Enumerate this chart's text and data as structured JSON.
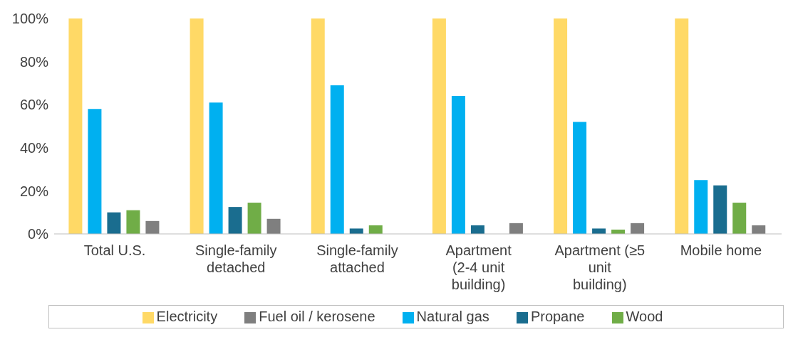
{
  "chart_data": {
    "type": "bar",
    "categories": [
      "Total U.S.",
      "Single-family detached",
      "Single-family attached",
      "Apartment (2-4 unit building)",
      "Apartment (≥5 unit building)",
      "Mobile home"
    ],
    "series": [
      {
        "name": "Electricity",
        "color": "#ffd966",
        "values": [
          100,
          100,
          100,
          100,
          100,
          100
        ]
      },
      {
        "name": "Natural gas",
        "color": "#00b0f0",
        "values": [
          58,
          61,
          69,
          64,
          52,
          25
        ]
      },
      {
        "name": "Propane",
        "color": "#1a6d8f",
        "values": [
          10,
          12.5,
          2.5,
          4,
          2.5,
          22.5
        ]
      },
      {
        "name": "Wood",
        "color": "#70ad47",
        "values": [
          11,
          14.5,
          4,
          null,
          2,
          14.5
        ]
      },
      {
        "name": "Fuel oil / kerosene",
        "color": "#7f7f7f",
        "values": [
          6,
          7,
          null,
          5,
          5,
          4
        ]
      }
    ],
    "ylim": [
      0,
      100
    ],
    "yticks": [
      {
        "value": 0,
        "label": "0%"
      },
      {
        "value": 20,
        "label": "20%"
      },
      {
        "value": 40,
        "label": "40%"
      },
      {
        "value": 60,
        "label": "60%"
      },
      {
        "value": 80,
        "label": "80%"
      },
      {
        "value": 100,
        "label": "100%"
      }
    ],
    "grid": false,
    "legend": "bottom"
  }
}
